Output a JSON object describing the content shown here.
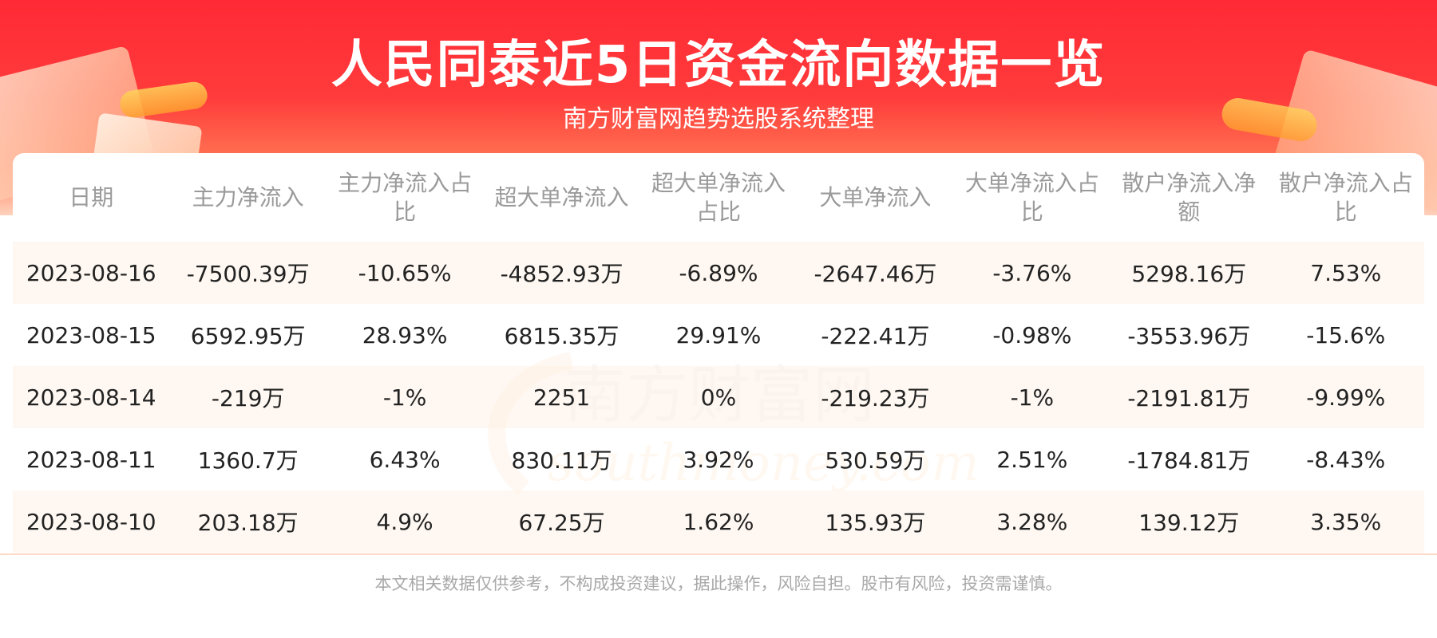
{
  "header": {
    "title": "人民同泰近5日资金流向数据一览",
    "subtitle": "南方财富网趋势选股系统整理"
  },
  "watermark": {
    "cn": "南方财富网",
    "en": "southmoney.com"
  },
  "table": {
    "headers": [
      "日期",
      "主力净流入",
      "主力净流入占比",
      "超大单净流入",
      "超大单净流入占比",
      "大单净流入",
      "大单净流入占比",
      "散户净流入净额",
      "散户净流入占比"
    ],
    "rows": [
      [
        "2023-08-16",
        "-7500.39万",
        "-10.65%",
        "-4852.93万",
        "-6.89%",
        "-2647.46万",
        "-3.76%",
        "5298.16万",
        "7.53%"
      ],
      [
        "2023-08-15",
        "6592.95万",
        "28.93%",
        "6815.35万",
        "29.91%",
        "-222.41万",
        "-0.98%",
        "-3553.96万",
        "-15.6%"
      ],
      [
        "2023-08-14",
        "-219万",
        "-1%",
        "2251",
        "0%",
        "-219.23万",
        "-1%",
        "-2191.81万",
        "-9.99%"
      ],
      [
        "2023-08-11",
        "1360.7万",
        "6.43%",
        "830.11万",
        "3.92%",
        "530.59万",
        "2.51%",
        "-1784.81万",
        "-8.43%"
      ],
      [
        "2023-08-10",
        "203.18万",
        "4.9%",
        "67.25万",
        "1.62%",
        "135.93万",
        "3.28%",
        "139.12万",
        "3.35%"
      ]
    ]
  },
  "footer": {
    "disclaimer": "本文相关数据仅供参考，不构成投资建议，据此操作，风险自担。股市有风险，投资需谨慎。"
  },
  "colors": {
    "banner_red": "#ff2a36",
    "header_text": "#9a9a9a",
    "cell_text": "#222222",
    "row_tint": "#fff6ee"
  }
}
